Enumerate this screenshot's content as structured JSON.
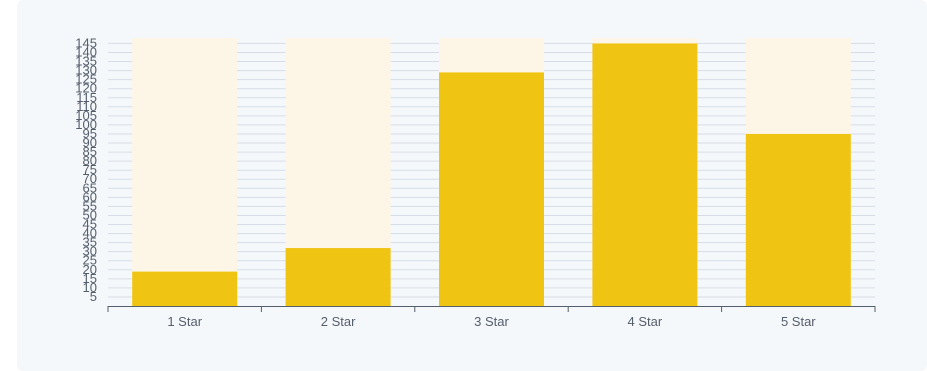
{
  "chart_data": {
    "type": "bar",
    "categories": [
      "1 Star",
      "2 Star",
      "3 Star",
      "4 Star",
      "5 Star"
    ],
    "values": [
      19,
      32,
      129,
      145,
      95
    ],
    "ylim": [
      0,
      148
    ],
    "y_ticks": [
      5,
      10,
      15,
      20,
      25,
      30,
      35,
      40,
      45,
      50,
      55,
      60,
      65,
      70,
      75,
      80,
      85,
      90,
      95,
      100,
      105,
      110,
      115,
      120,
      125,
      130,
      135,
      140,
      145
    ],
    "grid": true,
    "legend": "none",
    "colors": {
      "bar": "#f0c412",
      "bar_background": "#fdf6e6",
      "grid": "#d6dde6",
      "axis": "#555e6b"
    }
  }
}
